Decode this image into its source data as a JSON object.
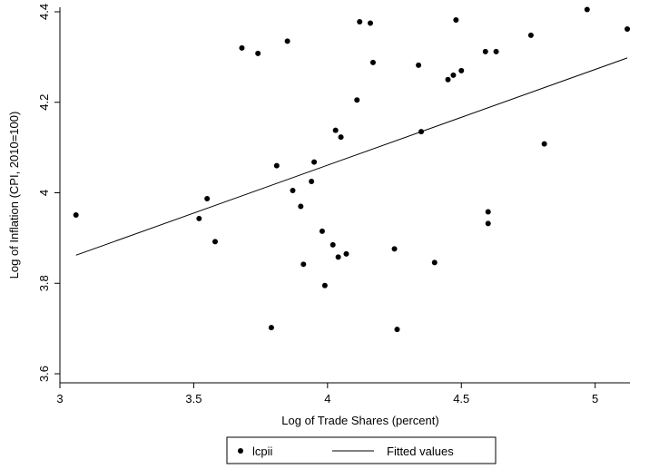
{
  "chart_data": {
    "type": "scatter",
    "xlabel": "Log of Trade Shares (percent)",
    "ylabel": "Log of Inflation (CPI, 2010=100)",
    "xlim": [
      3,
      5.13
    ],
    "ylim": [
      3.58,
      4.41
    ],
    "xticks": [
      3,
      3.5,
      4,
      4.5,
      5
    ],
    "xtick_labels": [
      "3",
      "3.5",
      "4",
      "4.5",
      "5"
    ],
    "yticks": [
      3.6,
      3.8,
      4,
      4.2,
      4.4
    ],
    "ytick_labels": [
      "3.6",
      "3.8",
      "4",
      "4.2",
      "4.4"
    ],
    "grid": false,
    "legend_position": "bottom",
    "series": [
      {
        "name": "lcpii",
        "kind": "scatter",
        "color": "#000000",
        "points": [
          [
            3.06,
            3.951
          ],
          [
            3.52,
            3.943
          ],
          [
            3.55,
            3.987
          ],
          [
            3.58,
            3.892
          ],
          [
            3.68,
            4.32
          ],
          [
            3.74,
            4.308
          ],
          [
            3.79,
            3.702
          ],
          [
            3.81,
            4.06
          ],
          [
            3.85,
            4.335
          ],
          [
            3.87,
            4.005
          ],
          [
            3.9,
            3.97
          ],
          [
            3.91,
            3.842
          ],
          [
            3.94,
            4.025
          ],
          [
            3.95,
            4.068
          ],
          [
            3.98,
            3.915
          ],
          [
            3.99,
            3.795
          ],
          [
            4.02,
            3.885
          ],
          [
            4.03,
            4.138
          ],
          [
            4.04,
            3.858
          ],
          [
            4.05,
            4.123
          ],
          [
            4.07,
            3.865
          ],
          [
            4.11,
            4.205
          ],
          [
            4.12,
            4.378
          ],
          [
            4.16,
            4.375
          ],
          [
            4.17,
            4.288
          ],
          [
            4.25,
            3.876
          ],
          [
            4.26,
            3.698
          ],
          [
            4.34,
            4.282
          ],
          [
            4.35,
            4.135
          ],
          [
            4.4,
            3.846
          ],
          [
            4.45,
            4.25
          ],
          [
            4.47,
            4.26
          ],
          [
            4.48,
            4.382
          ],
          [
            4.5,
            4.27
          ],
          [
            4.59,
            4.312
          ],
          [
            4.6,
            3.958
          ],
          [
            4.6,
            3.932
          ],
          [
            4.63,
            4.312
          ],
          [
            4.76,
            4.348
          ],
          [
            4.81,
            4.108
          ],
          [
            4.97,
            4.405
          ],
          [
            5.12,
            4.362
          ]
        ]
      },
      {
        "name": "Fitted values",
        "kind": "line",
        "color": "#000000",
        "points": [
          [
            3.06,
            3.862
          ],
          [
            5.12,
            4.298
          ]
        ]
      }
    ]
  }
}
